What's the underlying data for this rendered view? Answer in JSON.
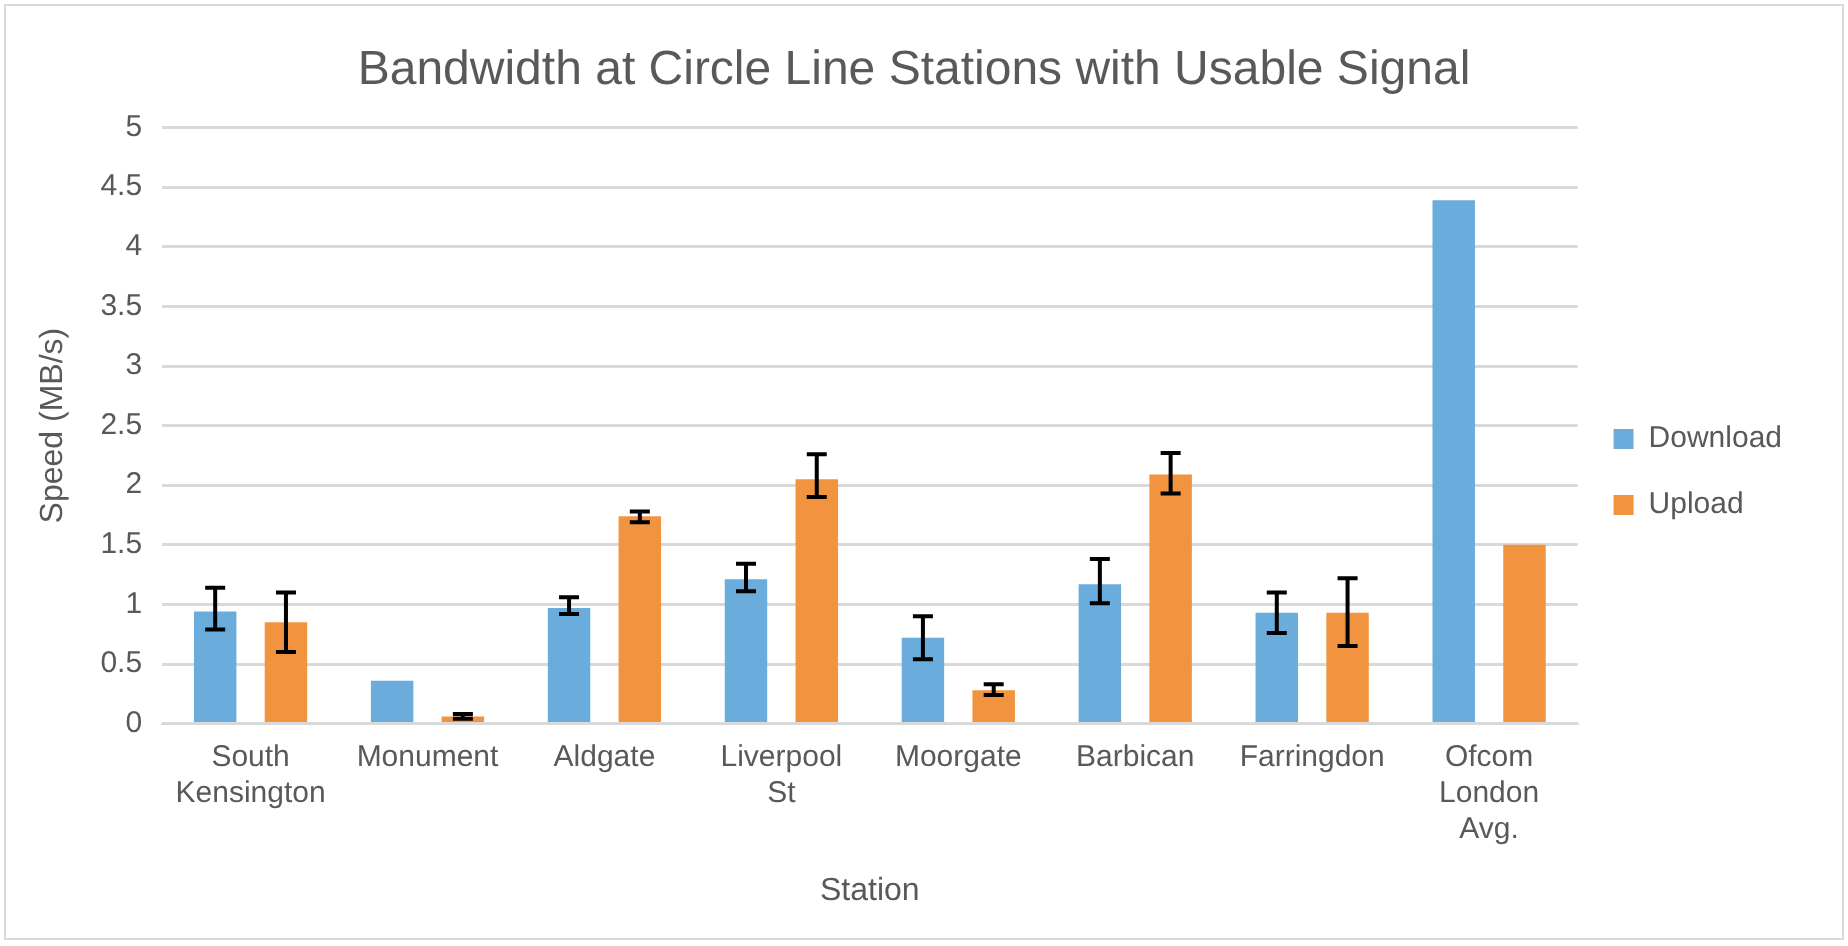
{
  "chart_data": {
    "type": "bar",
    "title": "Bandwidth at Circle Line Stations with Usable Signal",
    "xlabel": "Station",
    "ylabel": "Speed (MB/s)",
    "categories": [
      "South Kensington",
      "Monument",
      "Aldgate",
      "Liverpool St",
      "Moorgate",
      "Barbican",
      "Farringdon",
      "Ofcom London Avg."
    ],
    "series": [
      {
        "name": "Download",
        "color": "#6aaddd",
        "values": [
          0.94,
          0.36,
          0.97,
          1.21,
          0.72,
          1.17,
          0.93,
          4.39
        ],
        "errors": [
          [
            0.79,
            1.14
          ],
          null,
          [
            0.92,
            1.06
          ],
          [
            1.11,
            1.34
          ],
          [
            0.54,
            0.9
          ],
          [
            1.01,
            1.38
          ],
          [
            0.76,
            1.1
          ],
          null
        ]
      },
      {
        "name": "Upload",
        "color": "#f1933f",
        "values": [
          0.85,
          0.06,
          1.74,
          2.05,
          0.28,
          2.09,
          0.93,
          1.5
        ],
        "errors": [
          [
            0.6,
            1.1
          ],
          0.02,
          [
            1.69,
            1.78
          ],
          [
            1.9,
            2.26
          ],
          [
            0.24,
            0.33
          ],
          [
            1.93,
            2.27
          ],
          [
            0.65,
            1.22
          ],
          null
        ]
      }
    ],
    "ylim": [
      0,
      5
    ],
    "yticks": [
      0,
      0.5,
      1,
      1.5,
      2,
      2.5,
      3,
      3.5,
      4,
      4.5,
      5
    ],
    "grid": "y",
    "legend": "right"
  }
}
